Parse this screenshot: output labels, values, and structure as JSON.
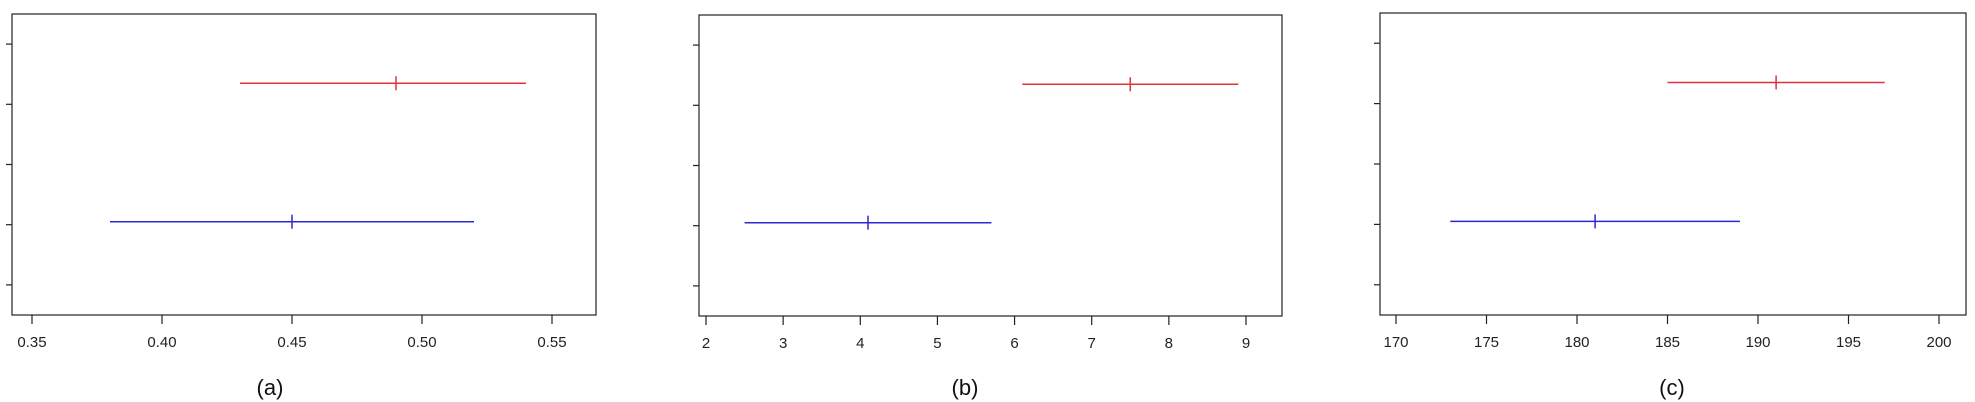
{
  "figure": {
    "panels": [
      {
        "id": "a",
        "caption": "(a)"
      },
      {
        "id": "b",
        "caption": "(b)"
      },
      {
        "id": "c",
        "caption": "(c)"
      }
    ]
  },
  "colors": {
    "upper": "#e0323c",
    "lower": "#2a2ad0",
    "axis": "#222222"
  },
  "chart_data": [
    {
      "type": "interval",
      "title": "",
      "xlabel": "",
      "ylabel": "",
      "xlim": [
        0.33,
        0.58
      ],
      "xticks": [
        0.35,
        0.4,
        0.45,
        0.5,
        0.55
      ],
      "xtick_labels": [
        "0.35",
        "0.40",
        "0.45",
        "0.50",
        "0.55"
      ],
      "yticks_count": 5,
      "series": [
        {
          "color": "#e0323c",
          "level": 0.77,
          "low": 0.43,
          "estimate": 0.49,
          "high": 0.54
        },
        {
          "color": "#2a2ad0",
          "level": 0.31,
          "low": 0.38,
          "estimate": 0.45,
          "high": 0.52
        }
      ]
    },
    {
      "type": "interval",
      "title": "",
      "xlabel": "",
      "ylabel": "",
      "xlim": [
        1.9,
        9.5
      ],
      "xticks": [
        2,
        3,
        4,
        5,
        6,
        7,
        8,
        9
      ],
      "xtick_labels": [
        "2",
        "3",
        "4",
        "5",
        "6",
        "7",
        "8",
        "9"
      ],
      "yticks_count": 5,
      "series": [
        {
          "color": "#e0323c",
          "level": 0.77,
          "low": 6.1,
          "estimate": 7.5,
          "high": 8.9
        },
        {
          "color": "#2a2ad0",
          "level": 0.31,
          "low": 2.5,
          "estimate": 4.1,
          "high": 5.7
        }
      ]
    },
    {
      "type": "interval",
      "title": "",
      "xlabel": "",
      "ylabel": "",
      "xlim": [
        169,
        201
      ],
      "xticks": [
        170,
        175,
        180,
        185,
        190,
        195,
        200
      ],
      "xtick_labels": [
        "170",
        "175",
        "180",
        "185",
        "190",
        "195",
        "200"
      ],
      "yticks_count": 5,
      "series": [
        {
          "color": "#e0323c",
          "level": 0.77,
          "low": 185,
          "estimate": 191,
          "high": 197
        },
        {
          "color": "#2a2ad0",
          "level": 0.31,
          "low": 173,
          "estimate": 181,
          "high": 189
        }
      ]
    }
  ]
}
